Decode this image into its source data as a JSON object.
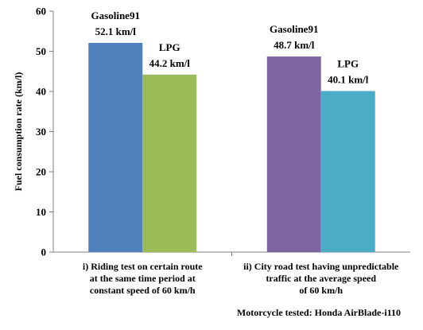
{
  "chart_data": {
    "type": "bar",
    "ylabel": "Fuel consumption rate (km/l)",
    "ylim": [
      0,
      60
    ],
    "yticks": [
      0,
      10,
      20,
      30,
      40,
      50,
      60
    ],
    "grid": false,
    "legend": "none",
    "categories": [
      {
        "lines": [
          "i) Riding test on certain route",
          "at the same time period at",
          "constant speed of 60 km/h"
        ],
        "bars": [
          {
            "name": "Gasoline91",
            "value": 52.1,
            "value_label": "52.1 km/l",
            "color": "#4F81BD"
          },
          {
            "name": "LPG",
            "value": 44.2,
            "value_label": "44.2 km/l",
            "color": "#9BBB59"
          }
        ]
      },
      {
        "lines": [
          "ii) City road test having unpredictable",
          "traffic at the average speed",
          "of 60 km/h"
        ],
        "bars": [
          {
            "name": "Gasoline91",
            "value": 48.7,
            "value_label": "48.7 km/l",
            "color": "#8064A2"
          },
          {
            "name": "LPG",
            "value": 40.1,
            "value_label": "40.1 km/l",
            "color": "#4BACC6"
          }
        ]
      }
    ],
    "footnote": "Motorcycle tested: Honda AirBlade-i110"
  }
}
